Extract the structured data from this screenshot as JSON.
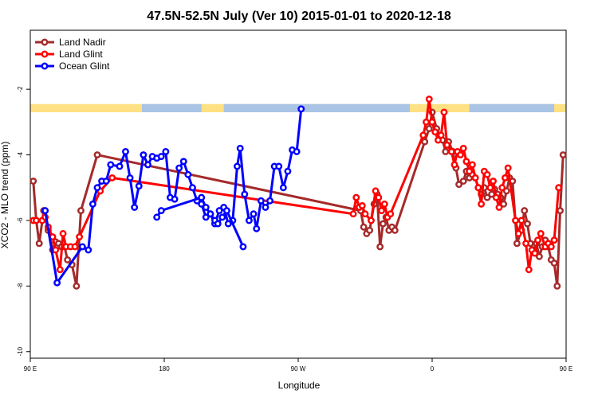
{
  "chart_data": {
    "type": "line",
    "title": "47.5N-52.5N July (Ver 10)   2015-01-01 to 2020-12-18",
    "xlabel": "Longitude",
    "ylabel": "XCO2 - MLO trend (ppm)",
    "xlim": [
      -90,
      270
    ],
    "ylim": [
      -10.2,
      -0.2
    ],
    "x_ticks": [
      {
        "value": -90,
        "label": "90 E"
      },
      {
        "value": 0,
        "label": "180"
      },
      {
        "value": 90,
        "label": "90 W"
      },
      {
        "value": 180,
        "label": "0"
      },
      {
        "value": 270,
        "label": "90 E"
      },
      {
        "value": 360,
        "label": "180"
      }
    ],
    "y_ticks": [
      {
        "value": -2,
        "label": "-2"
      },
      {
        "value": -4,
        "label": "-4"
      },
      {
        "value": -6,
        "label": "-6"
      },
      {
        "value": -8,
        "label": "-8"
      },
      {
        "value": -10,
        "label": "-10"
      }
    ],
    "legend_position": "top-left",
    "land_ocean_band": {
      "y_range": [
        -2.45,
        -2.7
      ],
      "land_color": "#FFE082",
      "ocean_color": "#A9C4E4"
    },
    "series": [
      {
        "name": "Land Nadir",
        "color": "#A52A2A",
        "points": [
          [
            -88,
            -4.8
          ],
          [
            -86,
            -6
          ],
          [
            -84,
            -6.7
          ],
          [
            -81,
            -5.7
          ],
          [
            -78,
            -6.3
          ],
          [
            -75,
            -6.9
          ],
          [
            -73,
            -6.65
          ],
          [
            -71,
            -6.7
          ],
          [
            -69,
            -6.8
          ],
          [
            -67,
            -6.8
          ],
          [
            -65,
            -7.2
          ],
          [
            -62,
            -7.35
          ],
          [
            -59,
            -8.0
          ],
          [
            -56,
            -5.7
          ],
          [
            -45,
            -4.0
          ],
          [
            132,
            -5.7
          ],
          [
            134,
            -6.2
          ],
          [
            136,
            -6.4
          ],
          [
            138,
            -6.3
          ],
          [
            141,
            -5.5
          ],
          [
            143,
            -5.2
          ],
          [
            145,
            -6.8
          ],
          [
            147,
            -6.1
          ],
          [
            149,
            -5.9
          ],
          [
            151,
            -6.3
          ],
          [
            153,
            -6.2
          ],
          [
            155,
            -6.3
          ],
          [
            175,
            -3.6
          ],
          [
            178,
            -3.2
          ],
          [
            180,
            -2.7
          ],
          [
            183,
            -3.2
          ],
          [
            185,
            -3.4
          ],
          [
            187,
            -3.55
          ],
          [
            189,
            -3.9
          ],
          [
            191,
            -3.6
          ],
          [
            194,
            -3.9
          ],
          [
            196,
            -4.4
          ],
          [
            198,
            -4.9
          ],
          [
            201,
            -4.8
          ],
          [
            203,
            -4.5
          ],
          [
            205,
            -4.7
          ],
          [
            207,
            -4.6
          ],
          [
            209,
            -4.7
          ],
          [
            211,
            -5.0
          ],
          [
            213,
            -5.2
          ],
          [
            215,
            -5.0
          ],
          [
            217,
            -5.3
          ],
          [
            220,
            -5.2
          ],
          [
            222,
            -5.05
          ],
          [
            224,
            -5.2
          ],
          [
            226,
            -5.3
          ],
          [
            228,
            -5.5
          ],
          [
            230,
            -5.1
          ],
          [
            232,
            -4.7
          ],
          [
            234,
            -4.8
          ],
          [
            237,
            -6.7
          ],
          [
            240,
            -6.3
          ],
          [
            242,
            -5.7
          ],
          [
            244,
            -6.1
          ],
          [
            246,
            -6.7
          ],
          [
            248,
            -6.9
          ],
          [
            250,
            -6.7
          ],
          [
            252,
            -7.1
          ],
          [
            254,
            -6.8
          ],
          [
            256,
            -6.6
          ],
          [
            258,
            -6.8
          ],
          [
            260,
            -7.2
          ],
          [
            262,
            -7.3
          ],
          [
            264,
            -8.0
          ],
          [
            266,
            -5.7
          ],
          [
            268,
            -4.0
          ]
        ]
      },
      {
        "name": "Land Glint",
        "color": "#FF0000",
        "points": [
          [
            -88,
            -6
          ],
          [
            -86,
            -6
          ],
          [
            -82,
            -6.0
          ],
          [
            -80,
            -5.9
          ],
          [
            -78,
            -6.2
          ],
          [
            -75,
            -6.5
          ],
          [
            -73,
            -6.9
          ],
          [
            -70,
            -7.5
          ],
          [
            -68,
            -6.4
          ],
          [
            -66,
            -6.8
          ],
          [
            -63,
            -6.8
          ],
          [
            -60,
            -6.8
          ],
          [
            -57,
            -6.5
          ],
          [
            -43,
            -5.1
          ],
          [
            -35,
            -4.7
          ],
          [
            127,
            -5.8
          ],
          [
            129,
            -5.3
          ],
          [
            131,
            -5.6
          ],
          [
            133,
            -5.55
          ],
          [
            135,
            -5.8
          ],
          [
            139,
            -6.0
          ],
          [
            142,
            -5.1
          ],
          [
            144,
            -5.3
          ],
          [
            146,
            -5.7
          ],
          [
            148,
            -5.5
          ],
          [
            150,
            -5.9
          ],
          [
            152,
            -5.8
          ],
          [
            174,
            -3.4
          ],
          [
            176,
            -3.0
          ],
          [
            178,
            -2.3
          ],
          [
            180,
            -3.0
          ],
          [
            182,
            -3.3
          ],
          [
            184,
            -3.55
          ],
          [
            186,
            -3.4
          ],
          [
            188,
            -2.7
          ],
          [
            190,
            -3.7
          ],
          [
            193,
            -3.9
          ],
          [
            195,
            -4.3
          ],
          [
            197,
            -3.9
          ],
          [
            199,
            -4.0
          ],
          [
            201,
            -3.8
          ],
          [
            203,
            -4.2
          ],
          [
            205,
            -4.5
          ],
          [
            207,
            -4.3
          ],
          [
            209,
            -4.7
          ],
          [
            211,
            -5.0
          ],
          [
            213,
            -5.5
          ],
          [
            215,
            -4.5
          ],
          [
            217,
            -4.6
          ],
          [
            219,
            -5.0
          ],
          [
            221,
            -4.8
          ],
          [
            223,
            -5.3
          ],
          [
            225,
            -5.6
          ],
          [
            227,
            -5.0
          ],
          [
            229,
            -4.7
          ],
          [
            231,
            -4.4
          ],
          [
            236,
            -6.0
          ],
          [
            238,
            -6.4
          ],
          [
            240,
            -6.0
          ],
          [
            243,
            -6.7
          ],
          [
            245,
            -7.5
          ],
          [
            247,
            -6.9
          ],
          [
            249,
            -7.0
          ],
          [
            251,
            -6.6
          ],
          [
            253,
            -6.4
          ],
          [
            256,
            -6.8
          ],
          [
            258,
            -6.7
          ],
          [
            260,
            -6.8
          ],
          [
            262,
            -6.6
          ],
          [
            265,
            -5.0
          ]
        ]
      },
      {
        "name": "Ocean Glint",
        "color": "#0000FF",
        "points": [
          [
            -80,
            -5.7
          ],
          [
            -72,
            -7.9
          ],
          [
            -55,
            -6.8
          ],
          [
            -51,
            -6.9
          ],
          [
            -48,
            -5.5
          ],
          [
            -45,
            -5.0
          ],
          [
            -42,
            -4.8
          ],
          [
            -39,
            -4.8
          ],
          [
            -36,
            -4.3
          ],
          [
            -30,
            -4.35
          ],
          [
            -26,
            -3.9
          ],
          [
            -23,
            -4.7
          ],
          [
            -20,
            -5.6
          ],
          [
            -17,
            -4.95
          ],
          [
            -14,
            -4.0
          ],
          [
            -11,
            -4.3
          ],
          [
            -8,
            -4.05
          ],
          [
            -5,
            -4.1
          ],
          [
            -2,
            -4.05
          ],
          [
            1,
            -3.9
          ],
          [
            4,
            -5.3
          ],
          [
            7,
            -5.35
          ],
          [
            10,
            -4.4
          ],
          [
            13,
            -4.2
          ],
          [
            16,
            -4.6
          ],
          [
            19,
            -5.0
          ],
          [
            22,
            -5.4
          ],
          [
            25,
            -5.5
          ],
          [
            28,
            -5.9
          ],
          [
            31,
            -5.8
          ],
          [
            34,
            -6.1
          ],
          [
            37,
            -5.7
          ],
          [
            40,
            -5.6
          ],
          [
            43,
            -6.1
          ],
          [
            46,
            -6.0
          ],
          [
            49,
            -4.35
          ],
          [
            51,
            -3.8
          ],
          [
            54,
            -5.2
          ],
          [
            57,
            -6.0
          ],
          [
            60,
            -5.8
          ],
          [
            62,
            -6.25
          ],
          [
            65,
            -5.4
          ],
          [
            68,
            -5.6
          ],
          [
            71,
            -5.4
          ],
          [
            74,
            -4.35
          ],
          [
            77,
            -4.35
          ],
          [
            80,
            -5.0
          ],
          [
            83,
            -4.5
          ],
          [
            86,
            -3.85
          ],
          [
            89,
            -3.9
          ],
          [
            92,
            -2.6
          ]
        ]
      },
      {
        "name": "",
        "color": "#0000FF",
        "points": [
          [
            -5,
            -5.9
          ],
          [
            -2,
            -5.7
          ],
          [
            25,
            -5.3
          ],
          [
            28,
            -5.6
          ],
          [
            31,
            -5.8
          ],
          [
            34,
            -6.0
          ],
          [
            36,
            -6.1
          ],
          [
            39,
            -5.9
          ],
          [
            42,
            -5.7
          ],
          [
            53,
            -6.8
          ]
        ]
      }
    ]
  }
}
